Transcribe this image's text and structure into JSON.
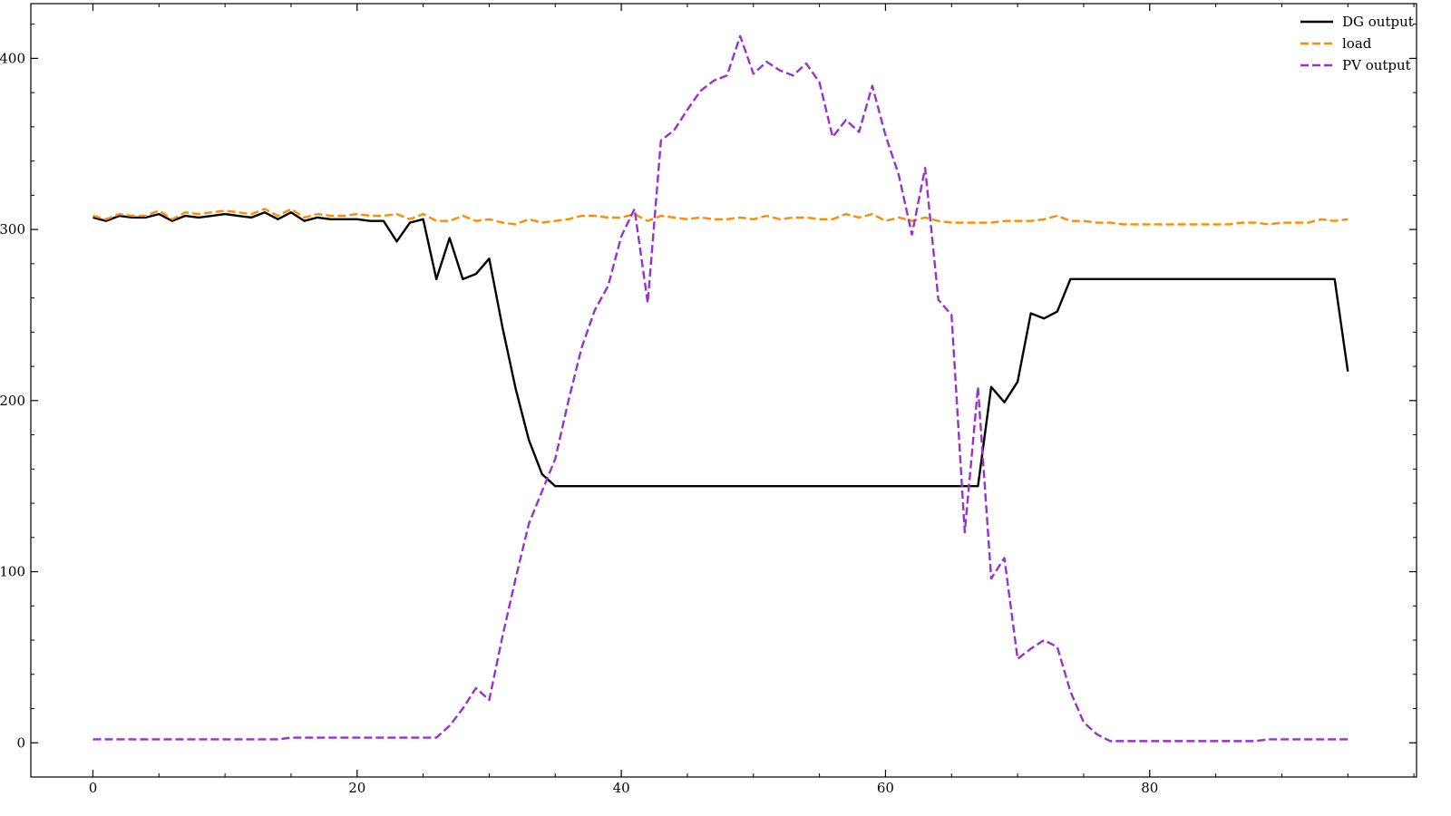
{
  "chart_data": {
    "type": "line",
    "title": "",
    "xlabel": "",
    "ylabel": "",
    "xlim": [
      -4.7,
      100.2
    ],
    "ylim": [
      -20,
      432
    ],
    "xticks": [
      0,
      20,
      40,
      60,
      80
    ],
    "yticks": [
      0,
      100,
      200,
      300,
      400
    ],
    "x_minor_step": 5,
    "y_minor_step": 20,
    "grid": false,
    "legend_position": "top-right",
    "x": [
      0,
      1,
      2,
      3,
      4,
      5,
      6,
      7,
      8,
      9,
      10,
      11,
      12,
      13,
      14,
      15,
      16,
      17,
      18,
      19,
      20,
      21,
      22,
      23,
      24,
      25,
      26,
      27,
      28,
      29,
      30,
      31,
      32,
      33,
      34,
      35,
      36,
      37,
      38,
      39,
      40,
      41,
      42,
      43,
      44,
      45,
      46,
      47,
      48,
      49,
      50,
      51,
      52,
      53,
      54,
      55,
      56,
      57,
      58,
      59,
      60,
      61,
      62,
      63,
      64,
      65,
      66,
      67,
      68,
      69,
      70,
      71,
      72,
      73,
      74,
      75,
      76,
      77,
      78,
      79,
      80,
      81,
      82,
      83,
      84,
      85,
      86,
      87,
      88,
      89,
      90,
      91,
      92,
      93,
      94,
      95
    ],
    "series": [
      {
        "name": "DG output",
        "color": "#000000",
        "dash": "solid",
        "values": [
          307,
          305,
          308,
          307,
          307,
          309,
          305,
          308,
          307,
          308,
          309,
          308,
          307,
          310,
          306,
          310,
          305,
          307,
          306,
          306,
          306,
          305,
          305,
          293,
          304,
          306,
          271,
          295,
          271,
          274,
          283,
          243,
          207,
          177,
          157,
          150,
          150,
          150,
          150,
          150,
          150,
          150,
          150,
          150,
          150,
          150,
          150,
          150,
          150,
          150,
          150,
          150,
          150,
          150,
          150,
          150,
          150,
          150,
          150,
          150,
          150,
          150,
          150,
          150,
          150,
          150,
          150,
          150,
          208,
          199,
          211,
          251,
          248,
          252,
          271,
          271,
          271,
          271,
          271,
          271,
          271,
          271,
          271,
          271,
          271,
          271,
          271,
          271,
          271,
          271,
          271,
          271,
          271,
          271,
          271,
          217
        ]
      },
      {
        "name": "load",
        "color": "#ff8c00",
        "dash": "dashed",
        "values": [
          308,
          306,
          309,
          308,
          308,
          311,
          306,
          310,
          309,
          310,
          311,
          310,
          309,
          312,
          308,
          312,
          307,
          309,
          308,
          308,
          309,
          308,
          308,
          309,
          306,
          309,
          305,
          305,
          308,
          305,
          306,
          304,
          303,
          306,
          304,
          305,
          306,
          308,
          308,
          307,
          307,
          309,
          305,
          308,
          307,
          306,
          307,
          306,
          306,
          307,
          306,
          308,
          306,
          307,
          307,
          306,
          306,
          309,
          307,
          309,
          305,
          307,
          305,
          307,
          305,
          304,
          304,
          304,
          304,
          305,
          305,
          305,
          306,
          308,
          305,
          305,
          304,
          304,
          303,
          303,
          303,
          303,
          303,
          303,
          303,
          303,
          303,
          304,
          304,
          303,
          304,
          304,
          304,
          306,
          305,
          306
        ]
      },
      {
        "name": "PV output",
        "color": "#9932cc",
        "dash": "dashed",
        "values": [
          2,
          2,
          2,
          2,
          2,
          2,
          2,
          2,
          2,
          2,
          2,
          2,
          2,
          2,
          2,
          3,
          3,
          3,
          3,
          3,
          3,
          3,
          3,
          3,
          3,
          3,
          3,
          10,
          20,
          32,
          25,
          62,
          96,
          128,
          147,
          166,
          200,
          231,
          253,
          267,
          296,
          312,
          257,
          352,
          358,
          370,
          381,
          387,
          390,
          413,
          391,
          398,
          393,
          390,
          397,
          386,
          354,
          364,
          357,
          384,
          355,
          332,
          297,
          336,
          259,
          250,
          123,
          208,
          96,
          108,
          49,
          55,
          60,
          56,
          30,
          12,
          5,
          1,
          1,
          1,
          1,
          1,
          1,
          1,
          1,
          1,
          1,
          1,
          1,
          2,
          2,
          2,
          2,
          2,
          2,
          2
        ]
      }
    ]
  }
}
